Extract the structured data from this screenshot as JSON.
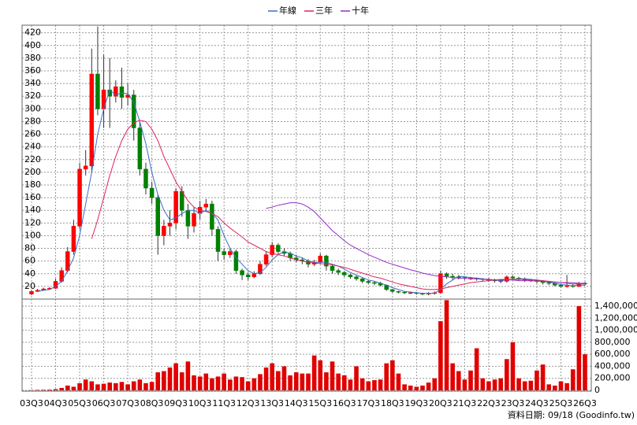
{
  "chart_data": {
    "type": "candlestick",
    "categories": [
      "03Q3",
      null,
      null,
      null,
      "04Q3",
      null,
      null,
      null,
      "05Q3",
      null,
      null,
      null,
      "06Q3",
      null,
      null,
      null,
      "07Q3",
      null,
      null,
      null,
      "08Q3",
      null,
      null,
      null,
      "09Q3",
      null,
      null,
      null,
      "10Q3",
      null,
      null,
      null,
      "11Q3",
      null,
      null,
      null,
      "12Q3",
      null,
      null,
      null,
      "13Q3",
      null,
      null,
      null,
      "14Q3",
      null,
      null,
      null,
      "15Q3",
      null,
      null,
      null,
      "16Q3",
      null,
      null,
      null,
      "17Q3",
      null,
      null,
      null,
      "18Q3",
      null,
      null,
      null,
      "19Q3",
      null,
      null,
      null,
      "20Q3",
      null,
      null,
      null,
      "21Q3",
      null,
      null,
      null,
      "22Q3",
      null,
      null,
      null,
      "23Q3",
      null,
      null,
      null,
      "24Q3",
      null,
      null,
      null,
      "25Q3",
      null,
      null,
      null,
      "26Q3"
    ],
    "open": [
      8,
      12,
      14,
      16,
      17,
      28,
      45,
      75,
      115,
      205,
      210,
      355,
      300,
      330,
      320,
      335,
      318,
      322,
      270,
      205,
      175,
      160,
      100,
      115,
      120,
      170,
      140,
      115,
      135,
      145,
      150,
      110,
      75,
      70,
      75,
      45,
      38,
      35,
      40,
      55,
      70,
      85,
      75,
      72,
      65,
      62,
      60,
      55,
      58,
      68,
      52,
      45,
      42,
      38,
      35,
      32,
      28,
      26,
      25,
      22,
      15,
      12,
      11,
      10,
      10,
      9,
      8,
      9,
      10,
      40,
      36,
      35,
      34,
      33,
      33,
      32,
      31,
      30,
      29,
      28,
      35,
      33,
      32,
      30,
      30,
      28,
      26,
      25,
      22,
      20,
      21,
      20,
      25
    ],
    "high": [
      14,
      16,
      18,
      19,
      32,
      50,
      82,
      125,
      215,
      235,
      395,
      430,
      385,
      380,
      345,
      365,
      340,
      330,
      280,
      215,
      185,
      165,
      125,
      140,
      175,
      178,
      150,
      145,
      155,
      158,
      155,
      115,
      80,
      80,
      78,
      48,
      42,
      44,
      60,
      75,
      90,
      88,
      80,
      75,
      70,
      66,
      63,
      62,
      72,
      70,
      55,
      48,
      44,
      40,
      37,
      34,
      30,
      28,
      27,
      23,
      16,
      13,
      12,
      12,
      11,
      10,
      11,
      12,
      45,
      42,
      40,
      38,
      36,
      35,
      34,
      33,
      33,
      32,
      31,
      37,
      37,
      35,
      34,
      32,
      31,
      30,
      28,
      26,
      24,
      38,
      24,
      27,
      27
    ],
    "low": [
      6,
      11,
      13,
      15,
      16,
      26,
      42,
      70,
      110,
      195,
      200,
      290,
      270,
      270,
      310,
      300,
      305,
      250,
      195,
      165,
      150,
      70,
      85,
      100,
      110,
      130,
      95,
      105,
      125,
      138,
      100,
      60,
      62,
      65,
      40,
      30,
      30,
      33,
      38,
      52,
      66,
      70,
      68,
      60,
      58,
      55,
      50,
      52,
      55,
      45,
      40,
      38,
      35,
      32,
      29,
      25,
      24,
      22,
      20,
      13,
      10,
      9,
      8,
      8,
      7,
      6,
      6,
      7,
      9,
      32,
      30,
      31,
      30,
      30,
      29,
      28,
      27,
      26,
      25,
      26,
      30,
      29,
      27,
      27,
      25,
      23,
      22,
      20,
      18,
      18,
      18,
      19,
      21
    ],
    "close": [
      12,
      14,
      16,
      17,
      28,
      45,
      75,
      115,
      205,
      210,
      355,
      300,
      330,
      320,
      335,
      318,
      322,
      270,
      205,
      175,
      160,
      100,
      115,
      120,
      170,
      140,
      115,
      135,
      145,
      150,
      110,
      75,
      70,
      75,
      45,
      38,
      35,
      40,
      55,
      70,
      85,
      75,
      72,
      65,
      62,
      60,
      55,
      58,
      68,
      52,
      45,
      42,
      38,
      35,
      32,
      28,
      26,
      25,
      22,
      15,
      12,
      11,
      10,
      10,
      9,
      8,
      9,
      10,
      40,
      36,
      35,
      34,
      33,
      33,
      32,
      31,
      30,
      29,
      28,
      35,
      33,
      32,
      30,
      30,
      28,
      26,
      25,
      22,
      20,
      21,
      20,
      25,
      24
    ],
    "up_color": "#ff0000",
    "down_color": "#008000",
    "series": [
      {
        "name": "年線",
        "color": "#3a6fc4",
        "values": [
          null,
          12,
          14,
          15,
          20,
          28,
          45,
          65,
          100,
          150,
          200,
          260,
          300,
          330,
          322,
          325,
          324,
          310,
          280,
          245,
          200,
          165,
          140,
          125,
          128,
          135,
          140,
          140,
          135,
          140,
          135,
          125,
          100,
          80,
          65,
          55,
          45,
          40,
          42,
          50,
          62,
          70,
          75,
          72,
          68,
          65,
          60,
          58,
          58,
          58,
          55,
          52,
          47,
          42,
          38,
          34,
          30,
          28,
          25,
          22,
          18,
          15,
          12,
          11,
          10,
          9,
          9,
          9,
          16,
          24,
          30,
          36,
          35,
          34,
          33,
          32,
          31,
          30,
          29,
          30,
          31,
          32,
          32,
          31,
          30,
          28,
          27,
          25,
          23,
          22,
          21,
          22,
          22
        ]
      },
      {
        "name": "三年",
        "color": "#e0245e",
        "values": [
          null,
          null,
          null,
          null,
          null,
          null,
          null,
          null,
          null,
          null,
          95,
          125,
          160,
          195,
          225,
          250,
          268,
          278,
          282,
          280,
          268,
          250,
          225,
          205,
          185,
          170,
          155,
          145,
          140,
          138,
          135,
          130,
          120,
          112,
          105,
          98,
          90,
          85,
          80,
          75,
          72,
          70,
          68,
          65,
          62,
          60,
          58,
          57,
          56,
          55,
          54,
          52,
          50,
          47,
          44,
          41,
          38,
          35,
          33,
          30,
          27,
          24,
          22,
          20,
          18,
          16,
          15,
          15,
          16,
          18,
          20,
          22,
          24,
          26,
          27,
          28,
          29,
          30,
          31,
          31,
          31,
          31,
          31,
          30,
          30,
          29,
          28,
          27,
          26,
          25,
          24,
          24,
          24
        ]
      },
      {
        "name": "十年",
        "color": "#9a2bc8",
        "values": [
          null,
          null,
          null,
          null,
          null,
          null,
          null,
          null,
          null,
          null,
          null,
          null,
          null,
          null,
          null,
          null,
          null,
          null,
          null,
          null,
          null,
          null,
          null,
          null,
          null,
          null,
          null,
          null,
          null,
          null,
          null,
          null,
          null,
          null,
          null,
          null,
          null,
          null,
          null,
          143,
          145,
          148,
          150,
          152,
          152,
          150,
          145,
          138,
          128,
          118,
          108,
          100,
          92,
          85,
          80,
          75,
          70,
          66,
          62,
          58,
          55,
          52,
          49,
          46,
          44,
          41,
          39,
          37,
          36,
          35,
          34,
          33,
          33,
          32,
          32,
          31,
          31,
          30,
          30,
          30,
          30,
          29,
          29,
          29,
          28,
          28,
          27,
          27,
          26,
          26,
          26,
          25,
          25
        ]
      }
    ],
    "volume": {
      "color": "#e00000",
      "axis": "y2",
      "values": [
        5000,
        8000,
        10000,
        12000,
        20000,
        40000,
        80000,
        60000,
        120000,
        180000,
        150000,
        100000,
        110000,
        130000,
        120000,
        140000,
        100000,
        150000,
        180000,
        120000,
        140000,
        300000,
        320000,
        380000,
        450000,
        300000,
        480000,
        250000,
        230000,
        280000,
        200000,
        230000,
        280000,
        180000,
        230000,
        220000,
        150000,
        200000,
        270000,
        380000,
        450000,
        320000,
        400000,
        250000,
        300000,
        280000,
        280000,
        580000,
        500000,
        300000,
        480000,
        280000,
        250000,
        180000,
        400000,
        200000,
        150000,
        170000,
        180000,
        450000,
        500000,
        280000,
        100000,
        80000,
        60000,
        80000,
        130000,
        200000,
        1150000,
        1500000,
        450000,
        320000,
        180000,
        330000,
        700000,
        200000,
        150000,
        180000,
        200000,
        520000,
        800000,
        200000,
        150000,
        160000,
        330000,
        430000,
        100000,
        80000,
        150000,
        120000,
        350000,
        1400000,
        600000
      ]
    },
    "ylim": [
      0,
      432
    ],
    "yticks": [
      20,
      40,
      60,
      80,
      100,
      120,
      140,
      160,
      180,
      200,
      220,
      240,
      260,
      280,
      300,
      320,
      340,
      360,
      380,
      400,
      420
    ],
    "y2lim": [
      0,
      1518000
    ],
    "y2ticks": [
      0,
      {
        "value": 200000,
        "label": "200,000"
      },
      {
        "value": 400000,
        "label": "400,000"
      },
      {
        "value": 600000,
        "label": "600,000"
      },
      {
        "value": 800000,
        "label": "800,000"
      },
      {
        "value": 1000000,
        "label": "1,000,000"
      },
      {
        "value": 1200000,
        "label": "1,200,000"
      },
      {
        "value": 1400000,
        "label": "1,400,000"
      }
    ],
    "grid": true,
    "footer": "資料日期: 09/18 (Goodinfo.tw)"
  }
}
